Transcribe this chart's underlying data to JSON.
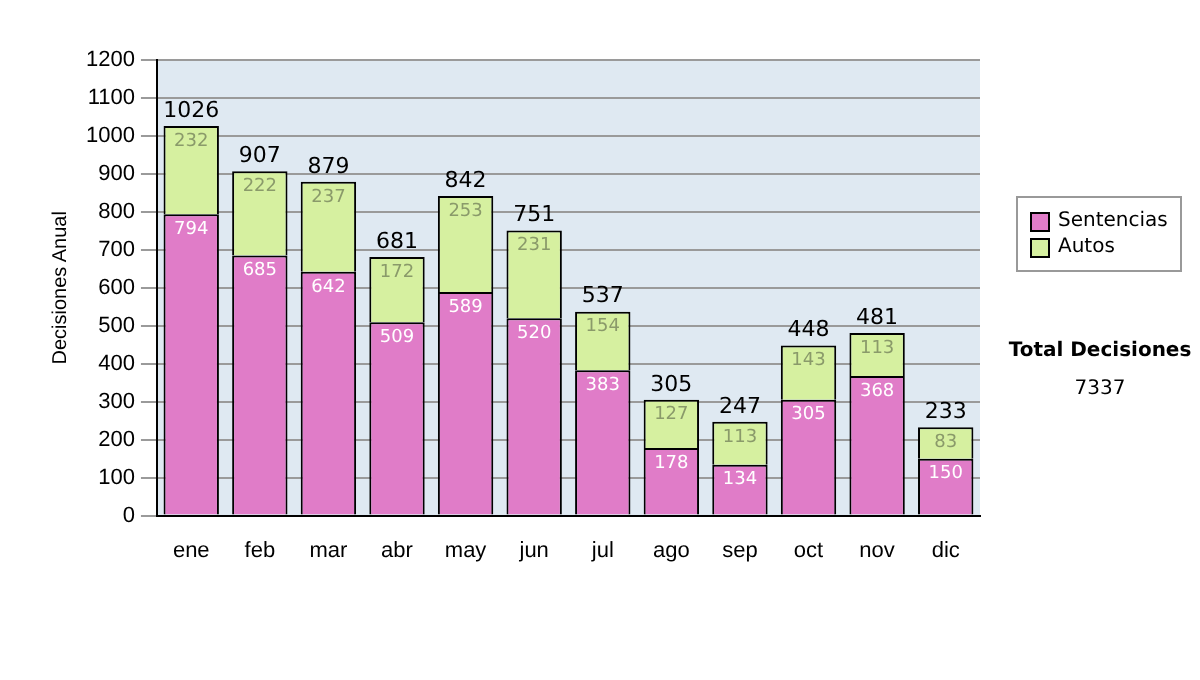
{
  "chart_data": {
    "type": "bar",
    "stacked": true,
    "ylabel": "Decisiones Anual",
    "categories": [
      "ene",
      "feb",
      "mar",
      "abr",
      "may",
      "jun",
      "jul",
      "ago",
      "sep",
      "oct",
      "nov",
      "dic"
    ],
    "series": [
      {
        "name": "Sentencias",
        "color": "#e07cc8",
        "values": [
          794,
          685,
          642,
          509,
          589,
          520,
          383,
          178,
          134,
          305,
          368,
          150
        ]
      },
      {
        "name": "Autos",
        "color": "#d6f0a0",
        "values": [
          232,
          222,
          237,
          172,
          253,
          231,
          154,
          127,
          113,
          143,
          113,
          83
        ]
      }
    ],
    "data_labels": true,
    "totals": [
      "1026",
      "907",
      "879",
      "681",
      "842",
      "751",
      "537",
      "305",
      "247",
      "448",
      "481",
      "233"
    ],
    "ylim": [
      0,
      1200
    ],
    "yticks": [
      0,
      100,
      200,
      300,
      400,
      500,
      600,
      700,
      800,
      900,
      1000,
      1100,
      1200
    ],
    "grid": "y",
    "legend": "right",
    "annotations": [
      "Total Decisiones",
      "7337"
    ]
  }
}
